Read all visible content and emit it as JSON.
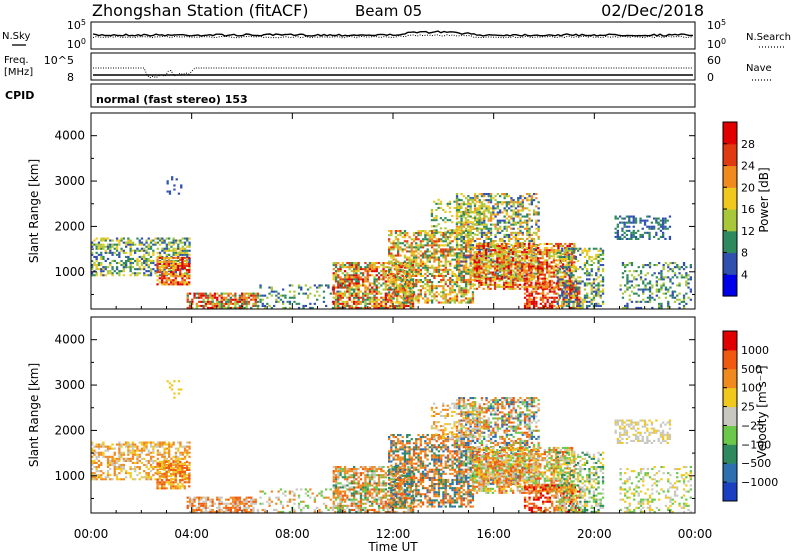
{
  "header": {
    "station": "Zhongshan Station (fitACF)",
    "beam": "Beam 05",
    "date": "02/Dec/2018"
  },
  "left_labels": {
    "nsky": "N.Sky",
    "freq_line1": "Freq.",
    "freq_line2": "[MHz]",
    "cpid": "CPID"
  },
  "right_labels": {
    "nsearch": "N.Search",
    "nave": "Nave"
  },
  "cpid_text": "normal (fast stereo) 153",
  "chart_data": [
    {
      "type": "line",
      "name": "noise",
      "ylabels_left": [
        "10^5",
        "10^0"
      ],
      "ylabels_right": [
        "10^5",
        "10^0"
      ],
      "series": [
        {
          "name": "N.Sky",
          "style": "solid"
        },
        {
          "name": "N.Search",
          "style": "dotted"
        }
      ]
    },
    {
      "type": "line",
      "name": "freq-nave",
      "ylabels_left": [
        "12",
        "8"
      ],
      "ylabels_right": [
        "60",
        "0"
      ],
      "series": [
        {
          "name": "Freq.",
          "style": "solid"
        },
        {
          "name": "Nave",
          "style": "dotted"
        }
      ]
    },
    {
      "type": "heatmap",
      "name": "power",
      "ylabel": "Slant Range [km]",
      "yticks": [
        1000,
        2000,
        3000,
        4000
      ],
      "ylim": [
        180,
        4500
      ],
      "xlim": [
        0,
        24
      ],
      "colorbar": {
        "label": "Power [dB]",
        "ticks": [
          "4",
          "8",
          "12",
          "16",
          "20",
          "24",
          "28"
        ],
        "colors": [
          "#0000e8",
          "#3050b0",
          "#2e8a5e",
          "#a8c83a",
          "#f0c81e",
          "#f08a1e",
          "#e03a10",
          "#e00000"
        ]
      }
    },
    {
      "type": "heatmap",
      "name": "velocity",
      "ylabel": "Slant Range [km]",
      "yticks": [
        1000,
        2000,
        3000,
        4000
      ],
      "ylim": [
        180,
        4500
      ],
      "xlim": [
        0,
        24
      ],
      "colorbar": {
        "label": "Velocity [m s⁻¹]",
        "ticks": [
          "1000",
          "500",
          "100",
          "25",
          "−25",
          "−100",
          "−500",
          "−1000"
        ],
        "colors": [
          "#1a3fc0",
          "#2e6fb0",
          "#2e8a5e",
          "#6cc84a",
          "#c8c8c0",
          "#f0c81e",
          "#f08a1e",
          "#f05a10",
          "#e00000"
        ]
      }
    }
  ],
  "xaxis": {
    "ticks": [
      "00:00",
      "04:00",
      "08:00",
      "12:00",
      "16:00",
      "20:00",
      "00:00"
    ],
    "label": "Time UT"
  }
}
